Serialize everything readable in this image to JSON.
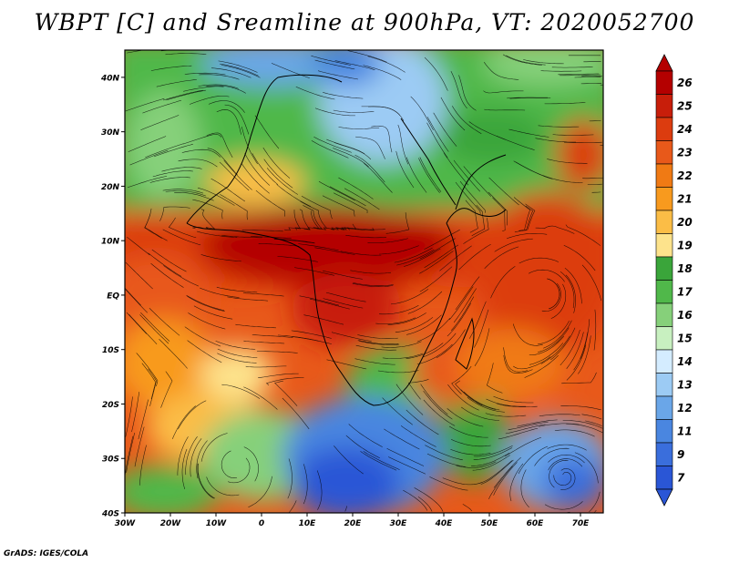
{
  "title": "WBPT [C] and Sreamline at 900hPa, VT: 2020052700",
  "credit": "GrADS: IGES/COLA",
  "axes": {
    "y_ticks": [
      "40N",
      "30N",
      "20N",
      "10N",
      "EQ",
      "10S",
      "20S",
      "30S",
      "40S"
    ],
    "x_ticks": [
      "30W",
      "20W",
      "10W",
      "0",
      "10E",
      "20E",
      "30E",
      "40E",
      "50E",
      "60E",
      "70E"
    ],
    "lat_range": [
      -40,
      45
    ],
    "lon_range": [
      -30,
      75
    ]
  },
  "colorbar": {
    "labels": [
      "26",
      "25",
      "24",
      "23",
      "22",
      "21",
      "20",
      "19",
      "18",
      "17",
      "16",
      "15",
      "14",
      "13",
      "12",
      "11",
      "9",
      "7"
    ],
    "colors": [
      "#b40000",
      "#c81e0a",
      "#dc3c0f",
      "#e8591a",
      "#f07a14",
      "#f89a1e",
      "#fbbd46",
      "#fde38c",
      "#3aa53a",
      "#50b84a",
      "#86d07a",
      "#c8f0c0",
      "#d4ecff",
      "#9ccbf4",
      "#6aa6e8",
      "#4a86e0",
      "#3a6edc",
      "#2a56d6"
    ],
    "extends": "both"
  }
}
